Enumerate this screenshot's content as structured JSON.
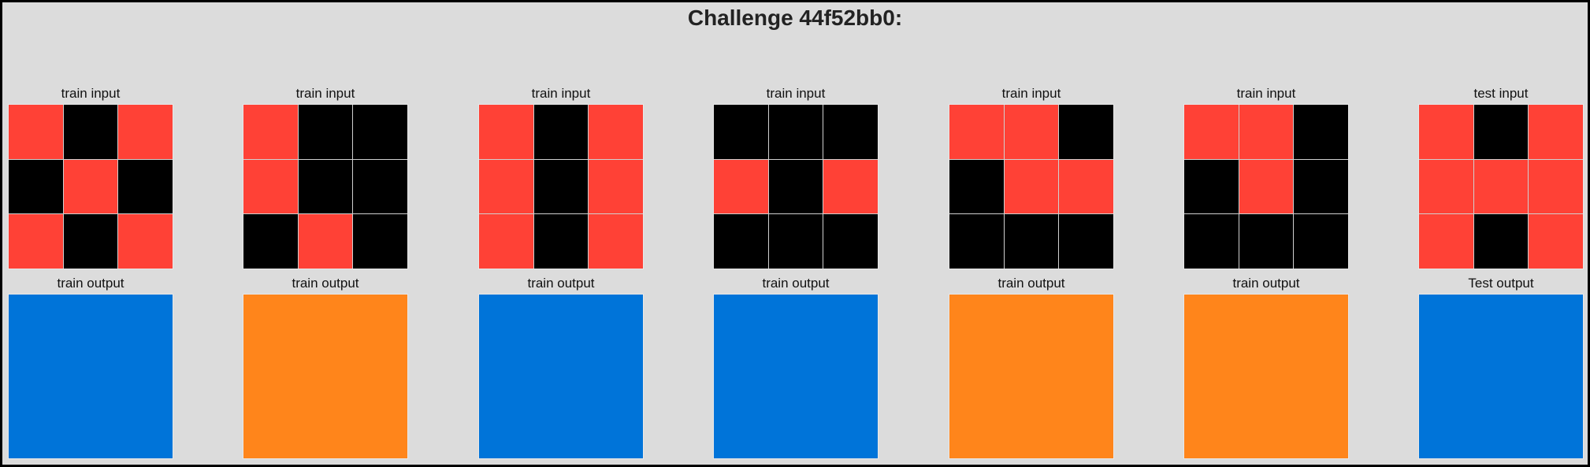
{
  "title": "Challenge 44f52bb0:",
  "colors": {
    "0": "#000000",
    "1": "#0074d9",
    "2": "#ff4136",
    "7": "#ff851b"
  },
  "pairs": [
    {
      "input_label": "train input",
      "output_label": "train output",
      "input": [
        [
          2,
          0,
          2
        ],
        [
          0,
          2,
          0
        ],
        [
          2,
          0,
          2
        ]
      ],
      "output": [
        [
          1
        ]
      ]
    },
    {
      "input_label": "train input",
      "output_label": "train output",
      "input": [
        [
          2,
          0,
          0
        ],
        [
          2,
          0,
          0
        ],
        [
          0,
          2,
          0
        ]
      ],
      "output": [
        [
          7
        ]
      ]
    },
    {
      "input_label": "train input",
      "output_label": "train output",
      "input": [
        [
          2,
          0,
          2
        ],
        [
          2,
          0,
          2
        ],
        [
          2,
          0,
          2
        ]
      ],
      "output": [
        [
          1
        ]
      ]
    },
    {
      "input_label": "train input",
      "output_label": "train output",
      "input": [
        [
          0,
          0,
          0
        ],
        [
          2,
          0,
          2
        ],
        [
          0,
          0,
          0
        ]
      ],
      "output": [
        [
          1
        ]
      ]
    },
    {
      "input_label": "train input",
      "output_label": "train output",
      "input": [
        [
          2,
          2,
          0
        ],
        [
          0,
          2,
          2
        ],
        [
          0,
          0,
          0
        ]
      ],
      "output": [
        [
          7
        ]
      ]
    },
    {
      "input_label": "train input",
      "output_label": "train output",
      "input": [
        [
          2,
          2,
          0
        ],
        [
          0,
          2,
          0
        ],
        [
          0,
          0,
          0
        ]
      ],
      "output": [
        [
          7
        ]
      ]
    },
    {
      "input_label": "test input",
      "output_label": "Test output",
      "input": [
        [
          2,
          0,
          2
        ],
        [
          2,
          2,
          2
        ],
        [
          2,
          0,
          2
        ]
      ],
      "output": [
        [
          1
        ]
      ]
    }
  ]
}
